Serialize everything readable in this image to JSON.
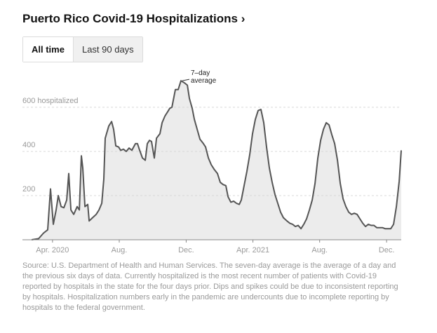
{
  "header": {
    "title": "Puerto Rico Covid-19 Hospitalizations ›",
    "buttons": [
      "All time",
      "Last 90 days"
    ]
  },
  "chart_data": {
    "type": "line",
    "color": "#555555",
    "fill": "#ececec",
    "annotation": [
      "7–day",
      "average"
    ],
    "x": [
      2020.146,
      2020.181,
      2020.205,
      2020.226,
      2020.24,
      2020.254,
      2020.268,
      2020.279,
      2020.293,
      2020.307,
      2020.321,
      2020.331,
      2020.342,
      2020.356,
      2020.373,
      2020.384,
      2020.394,
      2020.401,
      2020.412,
      2020.426,
      2020.433,
      2020.45,
      2020.468,
      2020.482,
      2020.496,
      2020.506,
      2020.513,
      2020.531,
      2020.545,
      2020.555,
      2020.566,
      2020.58,
      2020.59,
      2020.604,
      2020.618,
      2020.632,
      2020.646,
      2020.664,
      2020.674,
      2020.685,
      2020.699,
      2020.713,
      2020.723,
      2020.734,
      2020.744,
      2020.758,
      2020.769,
      2020.786,
      2020.797,
      2020.811,
      2020.825,
      2020.835,
      2020.846,
      2020.863,
      2020.877,
      2020.891,
      2020.909,
      2020.923,
      2020.933,
      2020.947,
      2020.958,
      2020.972,
      2020.986,
      2021.003,
      2021.014,
      2021.028,
      2021.042,
      2021.056,
      2021.073,
      2021.087,
      2021.101,
      2021.115,
      2021.126,
      2021.14,
      2021.154,
      2021.168,
      2021.182,
      2021.192,
      2021.206,
      2021.22,
      2021.234,
      2021.248,
      2021.262,
      2021.276,
      2021.29,
      2021.304,
      2021.318,
      2021.332,
      2021.346,
      2021.36,
      2021.374,
      2021.388,
      2021.402,
      2021.42,
      2021.434,
      2021.448,
      2021.462,
      2021.476,
      2021.49,
      2021.504,
      2021.518,
      2021.532,
      2021.546,
      2021.56,
      2021.574,
      2021.588,
      2021.602,
      2021.616,
      2021.63,
      2021.644,
      2021.658,
      2021.672,
      2021.686,
      2021.7,
      2021.714,
      2021.728,
      2021.742,
      2021.756,
      2021.77,
      2021.784,
      2021.798,
      2021.812,
      2021.826,
      2021.84,
      2021.854,
      2021.868,
      2021.882,
      2021.896,
      2021.91,
      2021.924,
      2021.938,
      2021.952,
      2021.966,
      2021.98,
      2021.99
    ],
    "values": [
      0,
      5,
      30,
      45,
      230,
      70,
      135,
      200,
      150,
      145,
      180,
      300,
      135,
      115,
      150,
      135,
      380,
      325,
      150,
      160,
      85,
      100,
      115,
      135,
      165,
      275,
      460,
      515,
      535,
      500,
      425,
      420,
      405,
      410,
      400,
      415,
      405,
      435,
      435,
      405,
      370,
      360,
      435,
      450,
      445,
      370,
      460,
      480,
      530,
      560,
      580,
      595,
      600,
      680,
      680,
      720,
      710,
      700,
      640,
      595,
      545,
      500,
      455,
      435,
      420,
      370,
      340,
      320,
      300,
      260,
      250,
      245,
      195,
      170,
      175,
      165,
      160,
      180,
      245,
      310,
      385,
      480,
      545,
      585,
      590,
      530,
      420,
      325,
      260,
      205,
      165,
      125,
      100,
      85,
      75,
      70,
      60,
      65,
      50,
      70,
      95,
      135,
      180,
      255,
      370,
      450,
      500,
      530,
      520,
      475,
      435,
      360,
      255,
      185,
      150,
      125,
      115,
      120,
      115,
      95,
      75,
      60,
      70,
      65,
      65,
      55,
      55,
      55,
      50,
      50,
      50,
      70,
      150,
      265,
      405
    ],
    "xlim": [
      2020.1,
      2021.99
    ],
    "xticks": [
      {
        "value": 2020.25,
        "label": "Apr. 2020"
      },
      {
        "value": 2020.583,
        "label": "Aug."
      },
      {
        "value": 2020.917,
        "label": "Dec."
      },
      {
        "value": 2021.25,
        "label": "Apr. 2021"
      },
      {
        "value": 2021.583,
        "label": "Aug."
      },
      {
        "value": 2021.917,
        "label": "Dec."
      }
    ],
    "ylim": [
      0,
      730
    ],
    "yticks": [
      200,
      400,
      {
        "value": 600,
        "label": "600 hospitalized"
      }
    ],
    "grid": true
  },
  "source": "Source: U.S. Department of Health and Human Services. The seven-day average is the average of a day and the previous six days of data. Currently hospitalized is the most recent number of patients with Covid-19 reported by hospitals in the state for the four days prior. Dips and spikes could be due to inconsistent reporting by hospitals. Hospitalization numbers early in the pandemic are undercounts due to incomplete reporting by hospitals to the federal government."
}
